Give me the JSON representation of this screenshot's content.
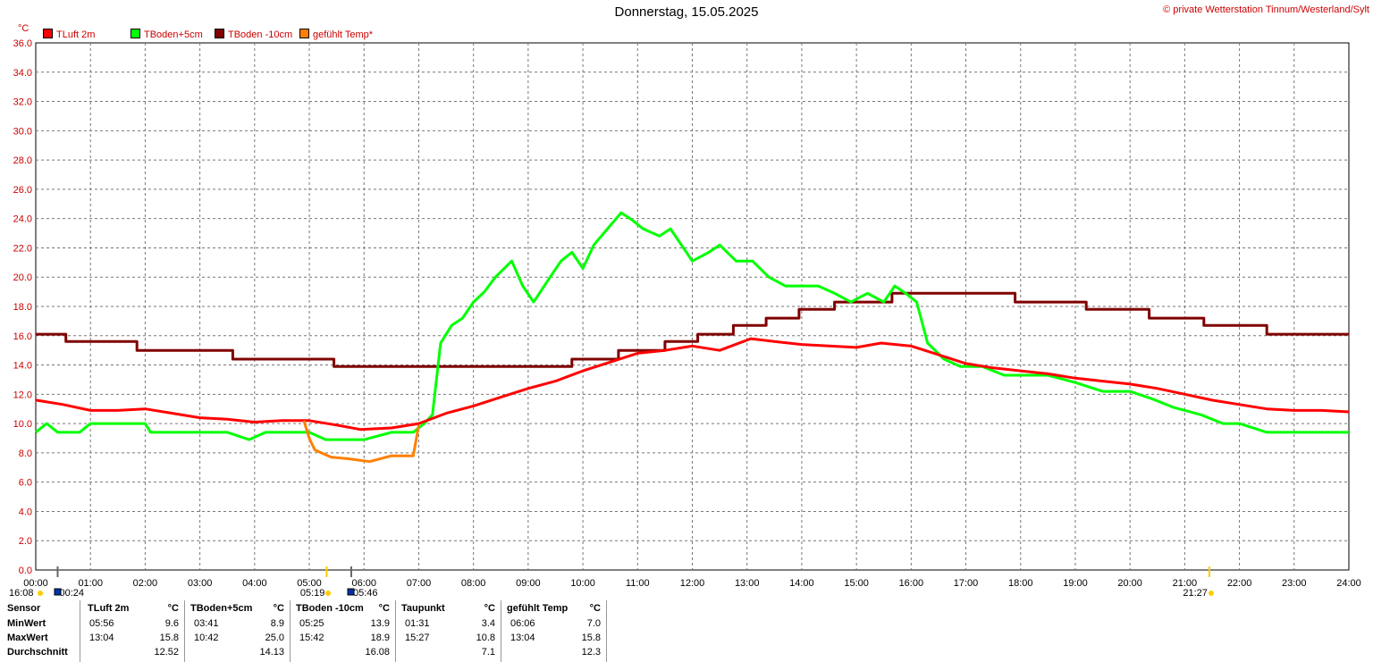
{
  "title": "Donnerstag, 15.05.2025",
  "copyright": "© private Wetterstation Tinnum/Westerland/Sylt",
  "unit": "°C",
  "legend": [
    {
      "label": "TLuft 2m",
      "color": "#ff0000"
    },
    {
      "label": "TBoden+5cm",
      "color": "#00ff00"
    },
    {
      "label": "TBoden -10cm",
      "color": "#800000"
    },
    {
      "label": "gefühlt Temp*",
      "color": "#ff8000"
    }
  ],
  "sun": {
    "prev_sunset": "16:08",
    "moonset": "00:24",
    "sunrise": "05:19",
    "moonrise": "05:46",
    "sunset": "21:27"
  },
  "chart_data": {
    "type": "line",
    "title": "Donnerstag, 15.05.2025",
    "ylabel": "°C",
    "ylim": [
      0,
      36
    ],
    "xlim": [
      0,
      24
    ],
    "y_ticks": [
      "0.0",
      "2.0",
      "4.0",
      "6.0",
      "8.0",
      "10.0",
      "12.0",
      "14.0",
      "16.0",
      "18.0",
      "20.0",
      "22.0",
      "24.0",
      "26.0",
      "28.0",
      "30.0",
      "32.0",
      "34.0",
      "36.0"
    ],
    "x_ticks": [
      "00:00",
      "01:00",
      "02:00",
      "03:00",
      "04:00",
      "05:00",
      "06:00",
      "07:00",
      "08:00",
      "09:00",
      "10:00",
      "11:00",
      "12:00",
      "13:00",
      "14:00",
      "15:00",
      "16:00",
      "17:00",
      "18:00",
      "19:00",
      "20:00",
      "21:00",
      "22:00",
      "23:00",
      "24:00"
    ],
    "grid": true,
    "series": [
      {
        "name": "TBoden -10cm",
        "color": "#800000",
        "step": true,
        "x": [
          0,
          0.55,
          1.85,
          3.6,
          5.45,
          9.8,
          10.65,
          11.5,
          12.1,
          12.75,
          13.35,
          13.95,
          14.6,
          15.65,
          17.9,
          19.2,
          20.35,
          21.35,
          22.5,
          24
        ],
        "y": [
          16.1,
          15.6,
          15.0,
          14.4,
          13.9,
          14.4,
          15.0,
          15.6,
          16.1,
          16.7,
          17.2,
          17.8,
          18.3,
          18.9,
          18.3,
          17.8,
          17.2,
          16.7,
          16.1,
          16.1
        ]
      },
      {
        "name": "TBoden+5cm",
        "color": "#00ff00",
        "x": [
          0,
          0.2,
          0.4,
          0.8,
          1.0,
          1.5,
          2.0,
          2.1,
          3.5,
          3.9,
          4.2,
          4.4,
          4.6,
          5.0,
          5.3,
          5.5,
          6.0,
          6.5,
          6.9,
          7.1,
          7.25,
          7.4,
          7.6,
          7.8,
          8.0,
          8.2,
          8.4,
          8.7,
          8.9,
          9.1,
          9.4,
          9.6,
          9.8,
          10.0,
          10.2,
          10.45,
          10.7,
          10.9,
          11.1,
          11.4,
          11.6,
          11.8,
          12.0,
          12.3,
          12.5,
          12.8,
          13.1,
          13.4,
          13.7,
          14.0,
          14.3,
          14.6,
          14.9,
          15.2,
          15.5,
          15.7,
          15.9,
          16.1,
          16.3,
          16.6,
          16.9,
          17.3,
          17.7,
          18.0,
          18.5,
          19.0,
          19.5,
          20.0,
          20.4,
          20.8,
          21.3,
          21.7,
          22.0,
          22.5,
          23.0,
          23.5,
          24.0
        ],
        "y": [
          9.4,
          10.0,
          9.4,
          9.4,
          10.0,
          10.0,
          10.0,
          9.4,
          9.4,
          8.9,
          9.4,
          9.4,
          9.4,
          9.4,
          8.9,
          8.9,
          8.9,
          9.4,
          9.4,
          10.0,
          10.6,
          15.5,
          16.7,
          17.2,
          18.3,
          19.0,
          20.0,
          21.1,
          19.4,
          18.3,
          20.0,
          21.1,
          21.7,
          20.6,
          22.2,
          23.3,
          24.4,
          23.9,
          23.3,
          22.8,
          23.3,
          22.2,
          21.1,
          21.7,
          22.2,
          21.1,
          21.1,
          20.0,
          19.4,
          19.4,
          19.4,
          18.9,
          18.3,
          18.9,
          18.3,
          19.4,
          18.9,
          18.3,
          15.5,
          14.4,
          13.9,
          13.9,
          13.3,
          13.3,
          13.3,
          12.8,
          12.2,
          12.2,
          11.7,
          11.1,
          10.6,
          10.0,
          10.0,
          9.4,
          9.4,
          9.4,
          9.4
        ]
      },
      {
        "name": "TLuft 2m",
        "color": "#ff0000",
        "x": [
          0,
          0.5,
          1.0,
          1.5,
          2.0,
          2.5,
          3.0,
          3.5,
          4.0,
          4.5,
          5.0,
          5.5,
          5.93,
          6.5,
          7.0,
          7.5,
          8.0,
          8.5,
          9.0,
          9.5,
          10.0,
          10.5,
          11.0,
          11.5,
          12.0,
          12.5,
          13.07,
          13.5,
          14.0,
          14.5,
          15.0,
          15.45,
          16.0,
          16.5,
          17.0,
          17.5,
          18.0,
          18.5,
          19.0,
          19.5,
          20.0,
          20.5,
          21.0,
          21.5,
          22.0,
          22.5,
          23.0,
          23.5,
          24.0
        ],
        "y": [
          11.6,
          11.3,
          10.9,
          10.9,
          11.0,
          10.7,
          10.4,
          10.3,
          10.1,
          10.2,
          10.2,
          9.9,
          9.6,
          9.7,
          10.0,
          10.7,
          11.2,
          11.8,
          12.4,
          12.9,
          13.6,
          14.2,
          14.8,
          15.0,
          15.3,
          15.0,
          15.8,
          15.6,
          15.4,
          15.3,
          15.2,
          15.5,
          15.3,
          14.7,
          14.1,
          13.8,
          13.6,
          13.4,
          13.1,
          12.9,
          12.7,
          12.4,
          12.0,
          11.6,
          11.3,
          11.0,
          10.9,
          10.9,
          10.8
        ]
      },
      {
        "name": "gefühlt Temp*",
        "color": "#ff8000",
        "x": [
          4.9,
          5.0,
          5.1,
          5.4,
          5.7,
          6.1,
          6.5,
          6.9,
          7.0
        ],
        "y": [
          10.2,
          9.0,
          8.2,
          7.7,
          7.6,
          7.4,
          7.8,
          7.8,
          9.9
        ]
      }
    ]
  },
  "stats": {
    "headers": {
      "sensor": "Sensor",
      "unit": "°C"
    },
    "row_labels": [
      "MinWert",
      "MaxWert",
      "Durchschnitt"
    ],
    "columns": [
      {
        "name": "TLuft 2m",
        "rows": [
          [
            "05:56",
            "9.6"
          ],
          [
            "13:04",
            "15.8"
          ],
          [
            "",
            "12.52"
          ]
        ]
      },
      {
        "name": "TBoden+5cm",
        "rows": [
          [
            "03:41",
            "8.9"
          ],
          [
            "10:42",
            "25.0"
          ],
          [
            "",
            "14.13"
          ]
        ]
      },
      {
        "name": "TBoden -10cm",
        "rows": [
          [
            "05:25",
            "13.9"
          ],
          [
            "15:42",
            "18.9"
          ],
          [
            "",
            "16.08"
          ]
        ]
      },
      {
        "name": "Taupunkt",
        "rows": [
          [
            "01:31",
            "3.4"
          ],
          [
            "15:27",
            "10.8"
          ],
          [
            "",
            "7.1"
          ]
        ]
      },
      {
        "name": "gefühlt Temp",
        "rows": [
          [
            "06:06",
            "7.0"
          ],
          [
            "13:04",
            "15.8"
          ],
          [
            "",
            "12.3"
          ]
        ]
      }
    ]
  }
}
